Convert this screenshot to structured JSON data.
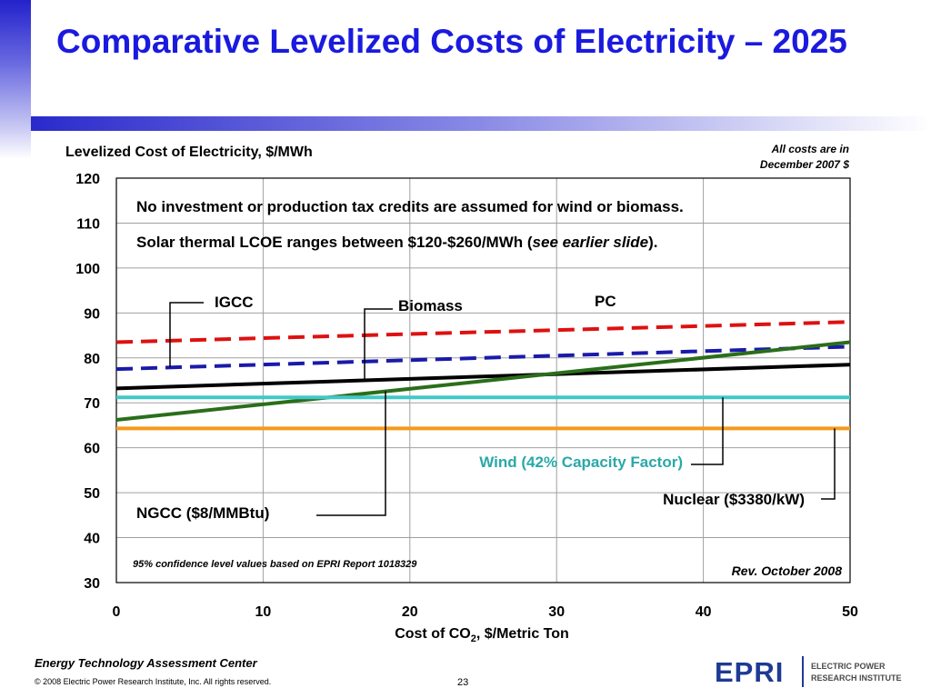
{
  "slide": {
    "title": "Comparative Levelized Costs of Electricity – 2025",
    "footer_org": "Energy Technology Assessment Center",
    "copyright": "© 2008 Electric Power Research Institute, Inc. All rights reserved.",
    "page_number": "23",
    "logo_text": "EPRI",
    "logo_subtitle_line1": "ELECTRIC POWER",
    "logo_subtitle_line2": "RESEARCH INSTITUTE",
    "colors": {
      "title": "#1a1adf",
      "accent_bar": "#2a2acc"
    }
  },
  "chart_data": {
    "type": "line",
    "ylabel": "Levelized Cost of Electricity, $/MWh",
    "xlabel_main": "Cost of CO",
    "xlabel_sub": "2",
    "xlabel_tail": ", $/Metric Ton",
    "xlim": [
      0,
      50
    ],
    "ylim": [
      30,
      120
    ],
    "xticks": [
      0,
      10,
      20,
      30,
      40,
      50
    ],
    "yticks": [
      30,
      40,
      50,
      60,
      70,
      80,
      90,
      100,
      110,
      120
    ],
    "grid": true,
    "series": [
      {
        "name": "PC",
        "color": "#dd1111",
        "dashed": true,
        "x": [
          0,
          50
        ],
        "y": [
          83.5,
          88
        ]
      },
      {
        "name": "IGCC",
        "color": "#1a1aaa",
        "dashed": true,
        "x": [
          0,
          50
        ],
        "y": [
          77.5,
          82.5
        ]
      },
      {
        "name": "Biomass",
        "color": "#000000",
        "dashed": false,
        "x": [
          0,
          50
        ],
        "y": [
          73.2,
          78.5
        ]
      },
      {
        "name": "NGCC ($8/MMBtu)",
        "color": "#2a6e1a",
        "dashed": false,
        "x": [
          0,
          50
        ],
        "y": [
          66.2,
          83.5
        ]
      },
      {
        "name": "Wind (42% Capacity Factor)",
        "color": "#40c8c8",
        "dashed": false,
        "x": [
          0,
          50
        ],
        "y": [
          71.2,
          71.2
        ]
      },
      {
        "name": "Nuclear ($3380/kW)",
        "color": "#f59a1b",
        "dashed": false,
        "x": [
          0,
          50
        ],
        "y": [
          64.3,
          64.3
        ]
      }
    ],
    "annotations": {
      "note1": "No investment or production tax credits are assumed for wind or biomass.",
      "note2_prefix": "Solar thermal LCOE ranges between $120-$260/MWh (",
      "note2_italic": "see earlier slide",
      "note2_suffix": ").",
      "costs_note_line1": "All costs are in",
      "costs_note_line2": "December 2007 $",
      "confidence_note": "95% confidence level values based on EPRI Report 1018329",
      "revision": "Rev. October 2008",
      "label_igcc": "IGCC",
      "label_biomass": "Biomass",
      "label_pc": "PC",
      "label_wind": "Wind (42% Capacity Factor)",
      "label_nuclear": "Nuclear ($3380/kW)",
      "label_ngcc": "NGCC ($8/MMBtu)"
    }
  }
}
